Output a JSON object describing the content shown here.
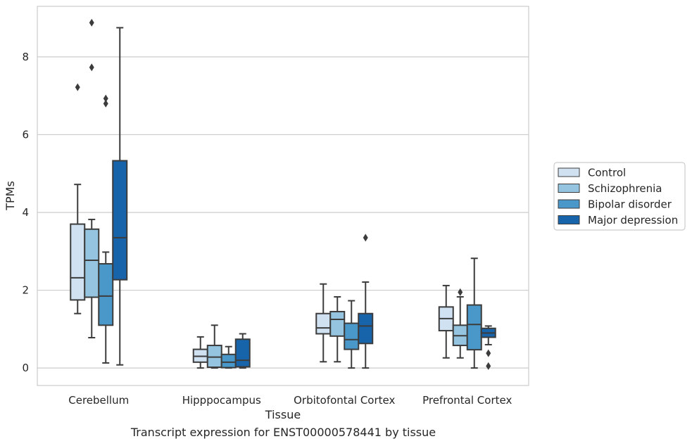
{
  "chart_data": {
    "type": "box",
    "xlabel": "Tissue",
    "ylabel": "TPMs",
    "caption": "Transcript expression for ENST00000578441 by tissue",
    "ylim": [
      -0.45,
      9.3
    ],
    "yticks": [
      0,
      2,
      4,
      6,
      8
    ],
    "grid": "horizontal",
    "legend_position": "right",
    "categories": [
      "Cerebellum",
      "Hipppocampus",
      "Orbitofontal Cortex",
      "Prefrontal Cortex"
    ],
    "series": [
      {
        "name": "Control",
        "color": "#d0e1f2",
        "boxes": [
          {
            "whislo": 1.4,
            "q1": 1.75,
            "med": 2.32,
            "q3": 3.7,
            "whishi": 4.72,
            "fliers": [
              7.22
            ]
          },
          {
            "whislo": 0.0,
            "q1": 0.15,
            "med": 0.3,
            "q3": 0.48,
            "whishi": 0.8,
            "fliers": []
          },
          {
            "whislo": 0.16,
            "q1": 0.88,
            "med": 1.03,
            "q3": 1.4,
            "whishi": 2.16,
            "fliers": []
          },
          {
            "whislo": 0.26,
            "q1": 0.96,
            "med": 1.27,
            "q3": 1.57,
            "whishi": 2.12,
            "fliers": []
          }
        ]
      },
      {
        "name": "Schizophrenia",
        "color": "#94c4df",
        "boxes": [
          {
            "whislo": 0.78,
            "q1": 1.82,
            "med": 2.77,
            "q3": 3.57,
            "whishi": 3.82,
            "fliers": [
              7.73,
              8.88
            ]
          },
          {
            "whislo": 0.0,
            "q1": 0.02,
            "med": 0.28,
            "q3": 0.58,
            "whishi": 1.1,
            "fliers": []
          },
          {
            "whislo": 0.16,
            "q1": 0.82,
            "med": 1.25,
            "q3": 1.45,
            "whishi": 1.83,
            "fliers": []
          },
          {
            "whislo": 0.26,
            "q1": 0.58,
            "med": 0.83,
            "q3": 1.1,
            "whishi": 1.83,
            "fliers": [
              1.95
            ]
          }
        ]
      },
      {
        "name": "Bipolar disorder",
        "color": "#4a98c9",
        "boxes": [
          {
            "whislo": 0.13,
            "q1": 1.1,
            "med": 1.85,
            "q3": 2.68,
            "whishi": 2.98,
            "fliers": [
              6.8,
              6.93
            ]
          },
          {
            "whislo": 0.0,
            "q1": 0.01,
            "med": 0.15,
            "q3": 0.35,
            "whishi": 0.55,
            "fliers": []
          },
          {
            "whislo": 0.0,
            "q1": 0.48,
            "med": 0.73,
            "q3": 1.15,
            "whishi": 1.73,
            "fliers": []
          },
          {
            "whislo": 0.0,
            "q1": 0.47,
            "med": 1.12,
            "q3": 1.62,
            "whishi": 2.82,
            "fliers": []
          }
        ]
      },
      {
        "name": "Major depression",
        "color": "#1764ab",
        "boxes": [
          {
            "whislo": 0.08,
            "q1": 2.27,
            "med": 3.35,
            "q3": 5.33,
            "whishi": 8.75,
            "fliers": []
          },
          {
            "whislo": 0.0,
            "q1": 0.03,
            "med": 0.2,
            "q3": 0.74,
            "whishi": 0.88,
            "fliers": []
          },
          {
            "whislo": 0.0,
            "q1": 0.63,
            "med": 1.08,
            "q3": 1.4,
            "whishi": 2.21,
            "fliers": [
              3.35
            ]
          },
          {
            "whislo": 0.6,
            "q1": 0.79,
            "med": 0.9,
            "q3": 1.02,
            "whishi": 1.08,
            "fliers": [
              0.38,
              0.05
            ]
          }
        ]
      }
    ]
  }
}
